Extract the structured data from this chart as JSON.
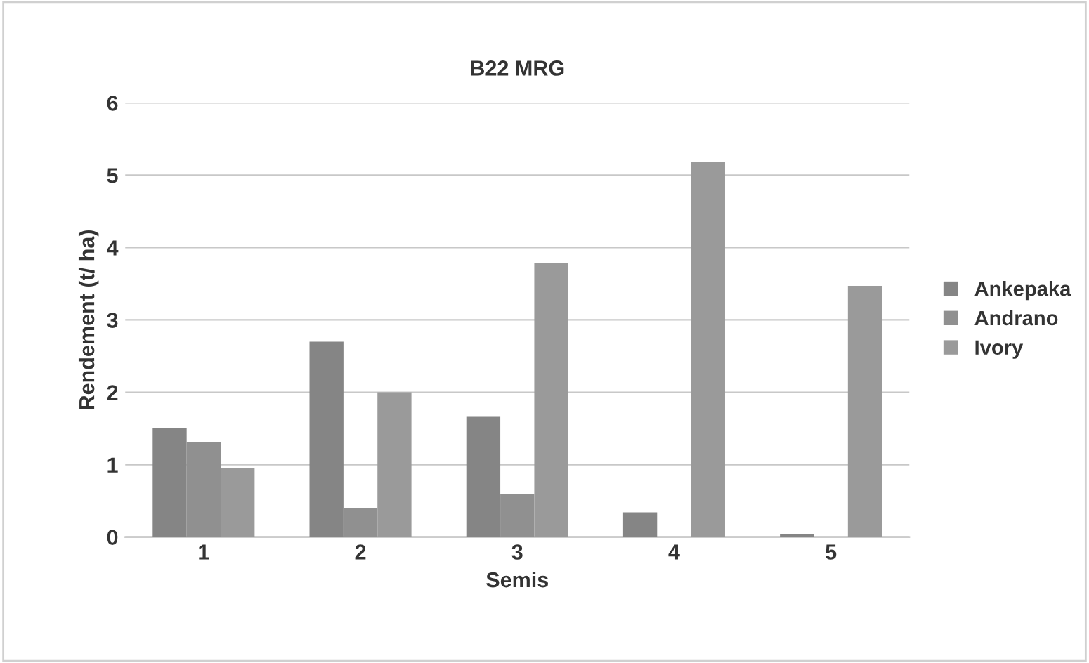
{
  "chart_data": {
    "type": "bar",
    "title": "B22 MRG",
    "xlabel": "Semis",
    "ylabel": "Rendement (t/ ha)",
    "categories": [
      "1",
      "2",
      "3",
      "4",
      "5"
    ],
    "series": [
      {
        "name": "Ankepaka",
        "color": "#858585",
        "values": [
          1.5,
          2.7,
          1.66,
          0.34,
          0.04
        ]
      },
      {
        "name": "Andrano",
        "color": "#909090",
        "values": [
          1.31,
          0.4,
          0.59,
          0,
          0
        ]
      },
      {
        "name": "Ivory",
        "color": "#9a9a9a",
        "values": [
          0.95,
          2.0,
          3.78,
          5.18,
          3.47
        ]
      }
    ],
    "ylim": [
      0,
      6
    ],
    "yticks": [
      0,
      1,
      2,
      3,
      4,
      5,
      6
    ],
    "grid": "y",
    "legend": "right"
  }
}
